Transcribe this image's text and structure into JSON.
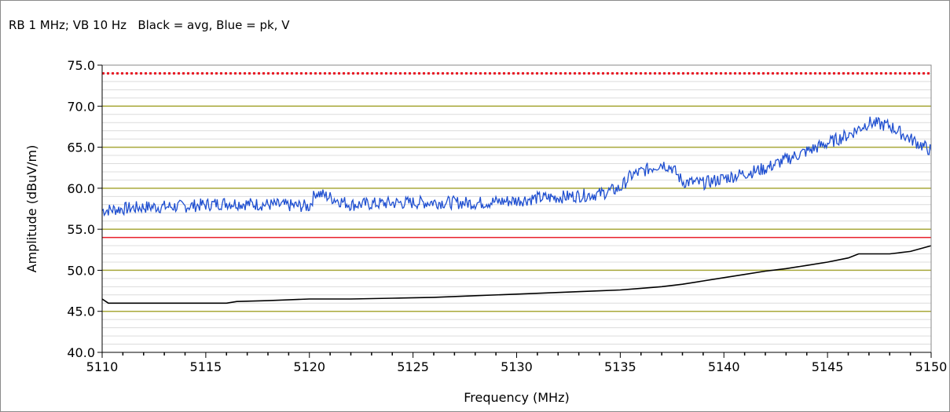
{
  "chart_data": {
    "type": "line",
    "subtitle": "RB 1 MHz; VB 10 Hz   Black = avg, Blue = pk, V",
    "xlabel": "Frequency (MHz)",
    "ylabel": "Amplitude (dBuV/m)",
    "xlim": [
      5110,
      5150
    ],
    "ylim": [
      40.0,
      75.0
    ],
    "x_ticks": [
      "5110",
      "5115",
      "5120",
      "5125",
      "5130",
      "5135",
      "5140",
      "5145",
      "5150"
    ],
    "y_ticks": [
      "40.0",
      "45.0",
      "50.0",
      "55.0",
      "60.0",
      "65.0",
      "70.0",
      "75.0"
    ],
    "major_gridlines_y": [
      45,
      50,
      55,
      60,
      65,
      70
    ],
    "grid": true,
    "limit_lines": [
      {
        "value": 74.0,
        "style": "dotted",
        "color": "#e8202a"
      },
      {
        "value": 54.0,
        "style": "solid",
        "color": "#e8202a"
      }
    ],
    "series": [
      {
        "color": "#1f4fd0",
        "x": [
          5110,
          5112,
          5114,
          5116,
          5118,
          5120,
          5120.3,
          5122,
          5124,
          5126,
          5128,
          5130,
          5131,
          5132,
          5133,
          5134,
          5135,
          5135.5,
          5136,
          5137,
          5137.5,
          5138,
          5139,
          5140,
          5141,
          5142,
          5143,
          5144,
          5145,
          5146,
          5147,
          5148,
          5149,
          5150
        ],
        "values": [
          57.3,
          57.7,
          57.8,
          58.2,
          58.0,
          57.8,
          59.5,
          58.0,
          58.2,
          58.3,
          58.2,
          58.5,
          58.8,
          58.9,
          59.1,
          59.3,
          60.0,
          61.5,
          62.0,
          63.0,
          62.5,
          60.8,
          60.6,
          61.2,
          61.8,
          62.4,
          63.5,
          64.5,
          65.5,
          66.5,
          68.0,
          67.6,
          66.0,
          64.6
        ]
      },
      {
        "color": "#000000",
        "x": [
          5110,
          5110.3,
          5113,
          5116,
          5116.5,
          5118,
          5120,
          5122,
          5124,
          5126,
          5128,
          5130,
          5132,
          5134,
          5135,
          5136,
          5137,
          5138,
          5139,
          5140,
          5141,
          5142,
          5143,
          5144,
          5145,
          5146,
          5146.5,
          5148,
          5149,
          5150
        ],
        "values": [
          46.5,
          46.0,
          46.0,
          46.0,
          46.2,
          46.3,
          46.5,
          46.5,
          46.6,
          46.7,
          46.9,
          47.1,
          47.3,
          47.5,
          47.6,
          47.8,
          48.0,
          48.3,
          48.7,
          49.1,
          49.5,
          49.9,
          50.2,
          50.6,
          51.0,
          51.5,
          52.0,
          52.0,
          52.3,
          53.0
        ]
      }
    ]
  },
  "colors": {
    "major_grid": "#a8a83a",
    "minor_grid": "#dcdcdc",
    "axis": "#000000",
    "frame": "#8a8a8a"
  }
}
